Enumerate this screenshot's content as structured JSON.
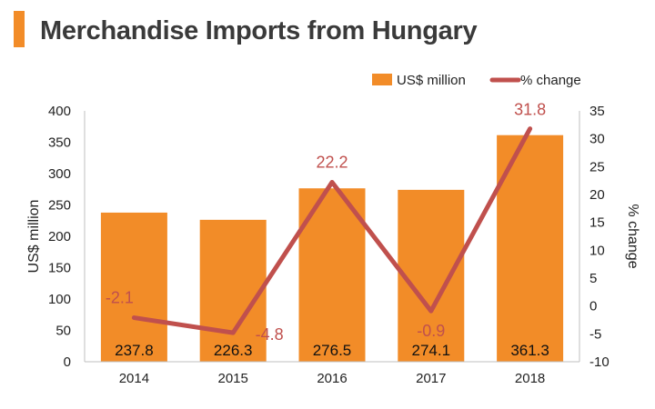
{
  "title": "Merchandise Imports from Hungary",
  "colors": {
    "accent": "#f28c28",
    "bar": "#f28c28",
    "line": "#c0504d",
    "title": "#3a3a3a"
  },
  "chart_data": {
    "type": "bar",
    "categories": [
      "2014",
      "2015",
      "2016",
      "2017",
      "2018"
    ],
    "series": [
      {
        "name": "US$ million",
        "type": "bar",
        "axis": "left",
        "values": [
          237.8,
          226.3,
          276.5,
          274.1,
          361.3
        ]
      },
      {
        "name": "% change",
        "type": "line",
        "axis": "right",
        "values": [
          -2.1,
          -4.8,
          22.2,
          -0.9,
          31.8
        ]
      }
    ],
    "ylabel": "US$ million",
    "ylabel_right": "% change",
    "ylim": [
      0,
      400
    ],
    "ylim_right": [
      -10,
      35
    ],
    "yticks": [
      "0",
      "50",
      "100",
      "150",
      "200",
      "250",
      "300",
      "350",
      "400"
    ],
    "yticks_right": [
      "-10",
      "-5",
      "0",
      "5",
      "10",
      "15",
      "20",
      "25",
      "30",
      "35"
    ],
    "legend_position": "top-right",
    "grid": false
  }
}
